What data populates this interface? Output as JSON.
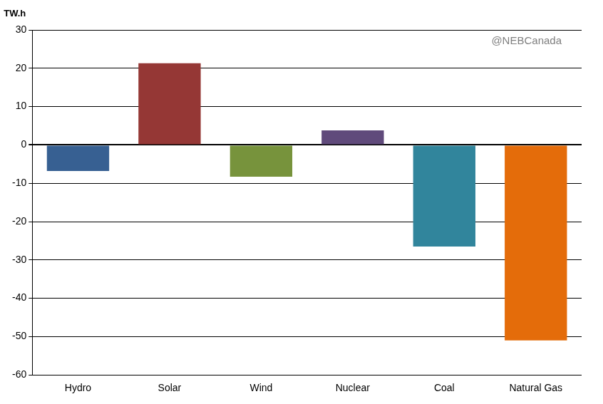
{
  "chart_data": {
    "type": "bar",
    "y_label": "TW.h",
    "annotations": [
      "@NEBCanada"
    ],
    "categories": [
      "Hydro",
      "Solar",
      "Wind",
      "Nuclear",
      "Coal",
      "Natural Gas"
    ],
    "values": [
      -6.8,
      21.3,
      -8.3,
      3.8,
      -26.5,
      -51
    ],
    "colors": [
      "#376092",
      "#953735",
      "#77933c",
      "#604a7b",
      "#31859c",
      "#e46c0a"
    ],
    "ylim": [
      -60,
      30
    ],
    "yticks": [
      -60,
      -50,
      -40,
      -30,
      -20,
      -10,
      0,
      10,
      20,
      30
    ],
    "grid": true
  }
}
